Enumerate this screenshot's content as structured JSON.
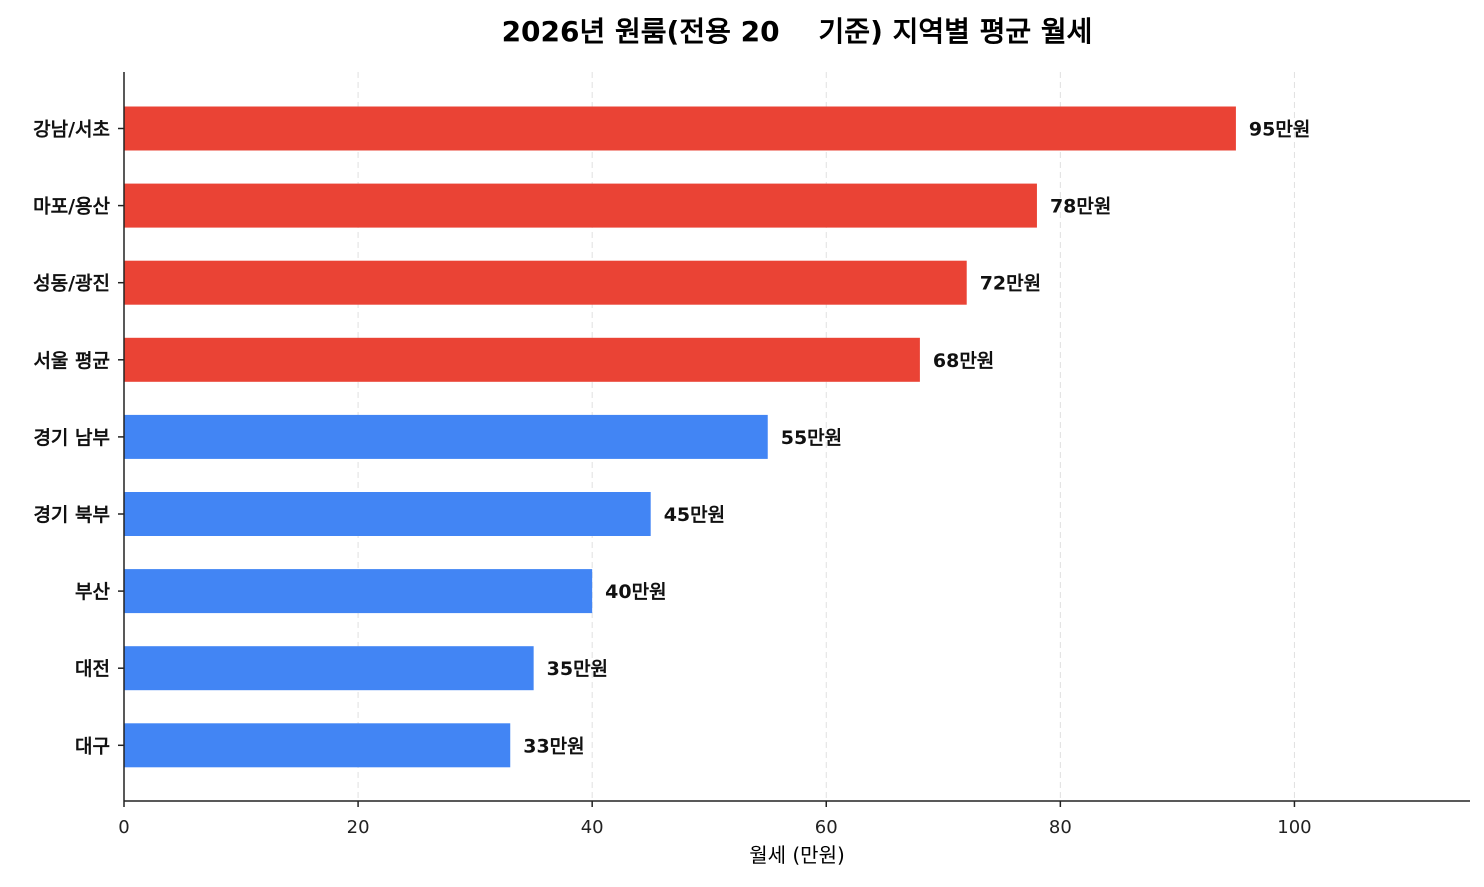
{
  "chart_data": {
    "type": "bar",
    "orientation": "horizontal",
    "title": "2026년 원룸(전용 20    기준) 지역별 평균 월세",
    "xlabel": "월세 (만원)",
    "ylabel": "",
    "xlim": [
      0,
      115
    ],
    "xticks": [
      0,
      20,
      40,
      60,
      80,
      100
    ],
    "grid": "x dashed",
    "categories": [
      "강남/서초",
      "마포/용산",
      "성동/광진",
      "서울 평균",
      "경기 남부",
      "경기 북부",
      "부산",
      "대전",
      "대구"
    ],
    "values": [
      95,
      78,
      72,
      68,
      55,
      45,
      40,
      35,
      33
    ],
    "data_labels": [
      "95만원",
      "78만원",
      "72만원",
      "68만원",
      "55만원",
      "45만원",
      "40만원",
      "35만원",
      "33만원"
    ],
    "bar_colors": [
      "#EA4335",
      "#EA4335",
      "#EA4335",
      "#EA4335",
      "#4285F4",
      "#4285F4",
      "#4285F4",
      "#4285F4",
      "#4285F4"
    ]
  }
}
